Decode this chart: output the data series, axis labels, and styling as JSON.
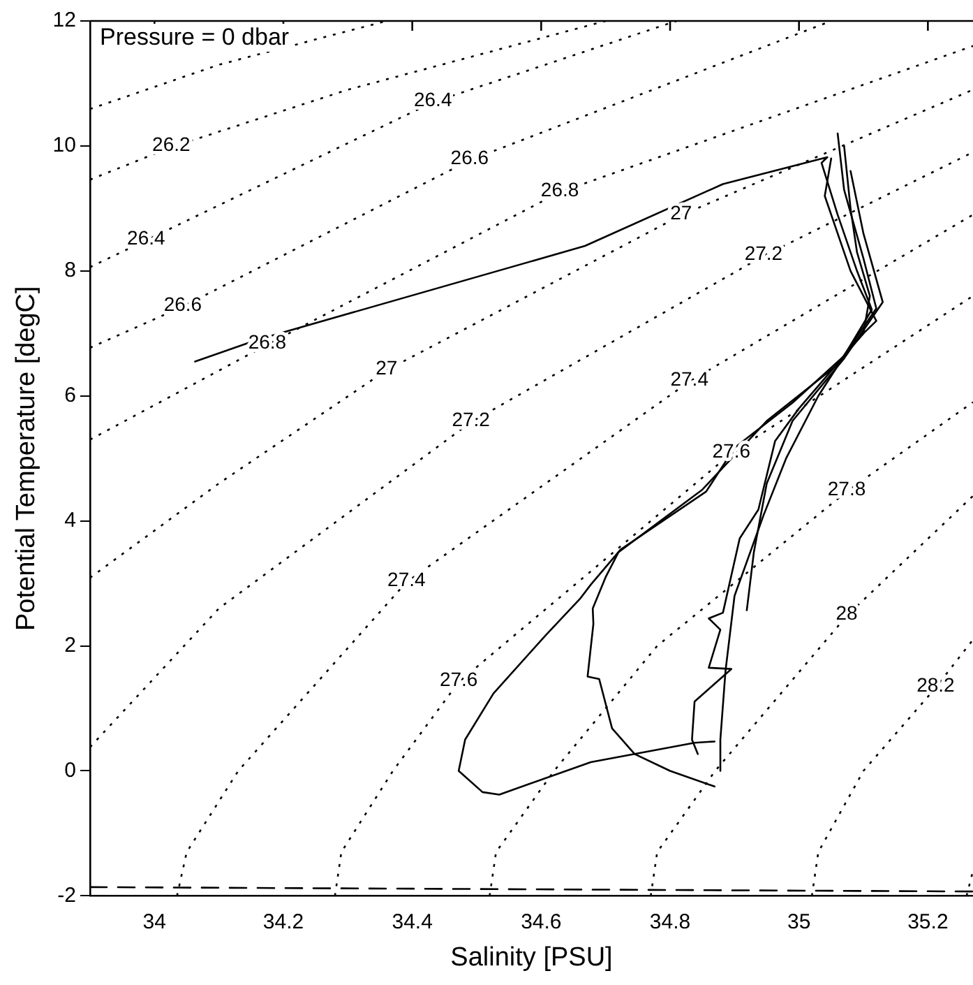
{
  "chart_data": {
    "type": "line",
    "xlabel": "Salinity [PSU]",
    "ylabel": "Potential Temperature [degC]",
    "xlim": [
      33.9,
      35.27
    ],
    "ylim": [
      -2,
      12
    ],
    "xticks": [
      34,
      34.2,
      34.4,
      34.6,
      34.8,
      35,
      35.2
    ],
    "yticks": [
      -2,
      0,
      2,
      4,
      6,
      8,
      10,
      12
    ],
    "grid": false,
    "legend": false,
    "marker": "none",
    "series": [
      {
        "color": "#000000",
        "line_style": "dotted",
        "x": [
          33.9,
          34.1,
          34.36
        ],
        "values": [
          10.59,
          11.3,
          12
        ]
      },
      {
        "color": "#000000",
        "line_style": "dotted",
        "x": [
          33.9,
          34.026,
          34.3,
          34.7
        ],
        "values": [
          9.46,
          9.98,
          10.9,
          12
        ]
      },
      {
        "color": "#000000",
        "line_style": "dotted",
        "x": [
          33.9,
          33.987,
          34.432,
          34.81
        ],
        "values": [
          8.06,
          8.49,
          10.7,
          12
        ]
      },
      {
        "color": "#000000",
        "line_style": "dotted",
        "x": [
          33.9,
          34.044,
          34.489,
          35.05
        ],
        "values": [
          6.77,
          7.43,
          9.77,
          12
        ]
      },
      {
        "color": "#000000",
        "line_style": "dotted",
        "x": [
          33.9,
          34.175,
          34.629,
          35.27
        ],
        "values": [
          5.3,
          6.82,
          9.26,
          11.6
        ]
      },
      {
        "color": "#000000",
        "line_style": "dotted",
        "x": [
          33.9,
          34.1,
          34.36,
          34.817,
          35.27
        ],
        "values": [
          3.09,
          4.6,
          6.41,
          8.89,
          10.9
        ]
      },
      {
        "color": "#000000",
        "line_style": "dotted",
        "x": [
          33.9,
          34.1,
          34.491,
          34.945,
          35.27
        ],
        "values": [
          0.38,
          2.6,
          5.58,
          8.24,
          9.9
        ]
      },
      {
        "color": "#000000",
        "line_style": "dotted",
        "x": [
          34.035,
          34.05,
          34.13,
          34.391,
          34.83,
          35.27
        ],
        "values": [
          -2,
          -1.3,
          0,
          3.02,
          6.23,
          8.9
        ]
      },
      {
        "color": "#000000",
        "line_style": "dotted",
        "x": [
          34.28,
          34.29,
          34.37,
          34.472,
          34.895,
          35.27
        ],
        "values": [
          -2,
          -1.3,
          0,
          1.42,
          5.08,
          7.6
        ]
      },
      {
        "color": "#000000",
        "line_style": "dotted",
        "x": [
          34.52,
          34.53,
          34.62,
          34.78,
          35.074,
          35.27
        ],
        "values": [
          -2,
          -1.3,
          0,
          2.0,
          4.47,
          5.9
        ]
      },
      {
        "color": "#000000",
        "line_style": "dotted",
        "x": [
          34.77,
          34.78,
          34.87,
          35.074,
          35.27
        ],
        "values": [
          -2,
          -1.3,
          0,
          2.48,
          4.4
        ]
      },
      {
        "color": "#000000",
        "line_style": "dotted",
        "x": [
          35.02,
          35.03,
          35.1,
          35.212,
          35.27
        ],
        "values": [
          -2,
          -1.3,
          0,
          1.33,
          2.1
        ]
      },
      {
        "color": "#000000",
        "line_style": "dotted",
        "x": [
          35.26,
          35.27
        ],
        "values": [
          -2,
          -1.6
        ]
      },
      {
        "color": "#000000",
        "line_style": "dashed",
        "x": [
          33.9,
          35.27
        ],
        "values": [
          -1.86,
          -1.93
        ]
      },
      {
        "color": "#000000",
        "line_style": "solid",
        "x": [
          34.063,
          34.16,
          34.668,
          34.882,
          35.044,
          35.035,
          35.06,
          35.09,
          35.113,
          35.07,
          34.99,
          34.9,
          34.856,
          34.723,
          34.677,
          34.66,
          34.607,
          34.526,
          34.482,
          34.472,
          34.509,
          34.535,
          34.677,
          34.838,
          34.869
        ],
        "values": [
          6.55,
          6.9,
          8.4,
          9.39,
          9.82,
          9.73,
          8.9,
          8.0,
          7.38,
          6.64,
          5.89,
          5.17,
          4.47,
          3.54,
          2.98,
          2.75,
          2.17,
          1.24,
          0.5,
          0.0,
          -0.34,
          -0.38,
          0.14,
          0.45,
          0.47
        ]
      },
      {
        "color": "#000000",
        "line_style": "solid",
        "x": [
          35.06,
          35.07,
          35.1,
          35.12,
          35.06,
          34.95,
          34.85,
          34.72,
          34.7,
          34.68,
          34.681,
          34.672,
          34.69,
          34.71,
          34.745,
          34.8,
          34.869
        ],
        "values": [
          10.2,
          9.3,
          8.2,
          7.4,
          6.5,
          5.6,
          4.5,
          3.5,
          3.1,
          2.6,
          2.35,
          1.51,
          1.47,
          0.68,
          0.27,
          0.0,
          -0.25
        ]
      },
      {
        "color": "#000000",
        "line_style": "solid",
        "x": [
          35.07,
          35.08,
          35.09,
          35.11,
          35.1,
          35.05,
          35.0,
          34.963,
          34.937,
          34.908,
          34.882,
          34.86,
          34.878,
          34.86,
          34.895,
          34.838,
          34.834,
          34.843
        ],
        "values": [
          10.0,
          9.0,
          8.3,
          7.6,
          7.0,
          6.4,
          5.8,
          5.28,
          4.18,
          3.72,
          2.53,
          2.44,
          2.26,
          1.65,
          1.63,
          1.11,
          0.5,
          0.27
        ]
      },
      {
        "color": "#000000",
        "line_style": "solid",
        "x": [
          35.05,
          35.04,
          35.08,
          35.12,
          35.08,
          35.03,
          34.98,
          34.945,
          34.9,
          34.886,
          34.878,
          34.878
        ],
        "values": [
          9.8,
          9.2,
          8.0,
          7.2,
          6.8,
          6.0,
          5.0,
          4.09,
          2.8,
          1.6,
          0.5,
          0.0
        ]
      },
      {
        "color": "#000000",
        "line_style": "solid",
        "x": [
          35.08,
          35.1,
          35.13,
          35.07,
          34.99,
          34.95,
          34.93,
          34.919
        ],
        "values": [
          9.6,
          8.6,
          7.5,
          6.6,
          5.6,
          4.6,
          3.5,
          2.57
        ]
      }
    ],
    "annotations": [
      "Pressure = 0 dbar",
      {
        "text": "26.2",
        "x": 34.026,
        "y": 9.98
      },
      {
        "text": "26.4",
        "x": 33.987,
        "y": 8.49
      },
      {
        "text": "26.4",
        "x": 34.432,
        "y": 10.7
      },
      {
        "text": "26.6",
        "x": 34.044,
        "y": 7.43
      },
      {
        "text": "26.6",
        "x": 34.489,
        "y": 9.77
      },
      {
        "text": "26.8",
        "x": 34.175,
        "y": 6.82
      },
      {
        "text": "26.8",
        "x": 34.629,
        "y": 9.26
      },
      {
        "text": "27",
        "x": 34.36,
        "y": 6.41
      },
      {
        "text": "27",
        "x": 34.817,
        "y": 8.89
      },
      {
        "text": "27.2",
        "x": 34.491,
        "y": 5.58
      },
      {
        "text": "27.2",
        "x": 34.945,
        "y": 8.24
      },
      {
        "text": "27.4",
        "x": 34.391,
        "y": 3.02
      },
      {
        "text": "27.4",
        "x": 34.83,
        "y": 6.23
      },
      {
        "text": "27.6",
        "x": 34.472,
        "y": 1.42
      },
      {
        "text": "27.6",
        "x": 34.895,
        "y": 5.08
      },
      {
        "text": "27.8",
        "x": 35.074,
        "y": 4.47
      },
      {
        "text": "28",
        "x": 35.074,
        "y": 2.48
      },
      {
        "text": "28.2",
        "x": 35.212,
        "y": 1.33
      }
    ]
  }
}
